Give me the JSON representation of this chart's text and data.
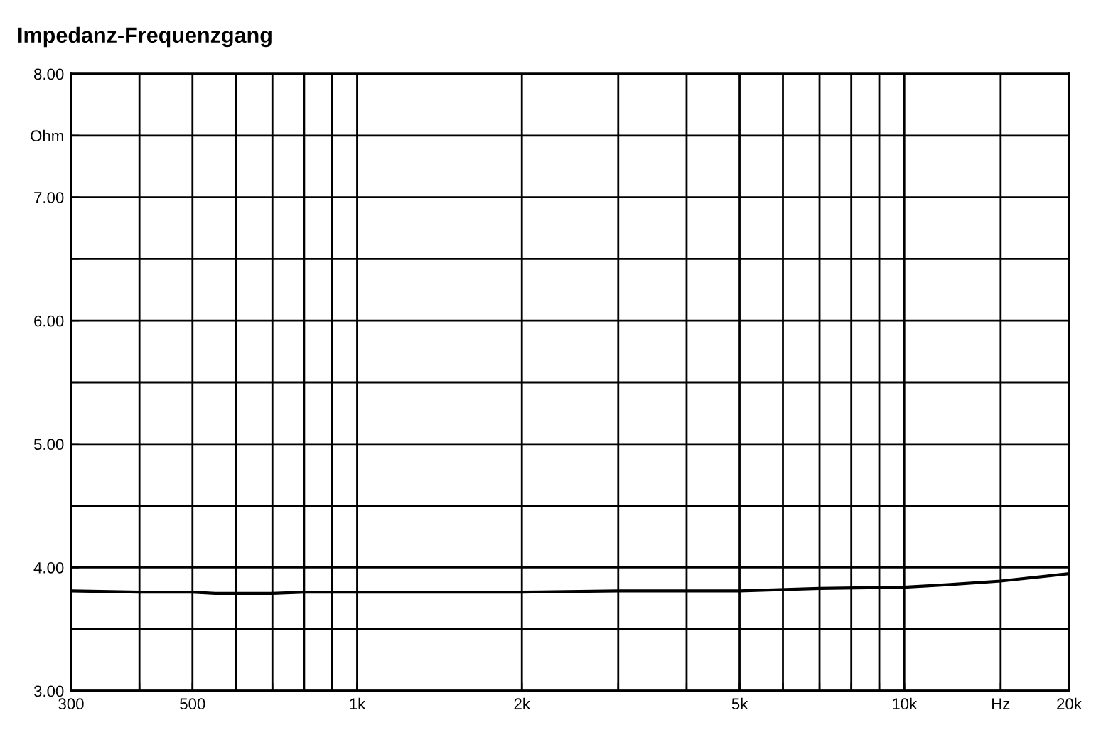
{
  "chart_data": {
    "type": "line",
    "title": "Impedanz-Frequenzgang",
    "x": [
      300,
      400,
      500,
      550,
      600,
      700,
      800,
      1000,
      2000,
      3000,
      5000,
      7000,
      10000,
      12000,
      15000,
      20000
    ],
    "values": [
      3.81,
      3.8,
      3.8,
      3.79,
      3.79,
      3.79,
      3.8,
      3.8,
      3.8,
      3.81,
      3.81,
      3.83,
      3.84,
      3.86,
      3.89,
      3.95
    ],
    "color": "#000000",
    "log": "x",
    "xlim": [
      300,
      20000
    ],
    "ylim": [
      3,
      8
    ],
    "xticks": [
      300,
      {
        "value": 400,
        "label": null
      },
      500,
      {
        "value": 600,
        "label": null
      },
      {
        "value": 700,
        "label": null
      },
      {
        "value": 800,
        "label": null
      },
      {
        "value": 900,
        "label": null
      },
      {
        "value": 1000,
        "label": "1k"
      },
      {
        "value": 2000,
        "label": "2k"
      },
      {
        "value": 3000,
        "label": null
      },
      {
        "value": 4000,
        "label": null
      },
      {
        "value": 5000,
        "label": "5k"
      },
      {
        "value": 6000,
        "label": null
      },
      {
        "value": 7000,
        "label": null
      },
      {
        "value": 8000,
        "label": null
      },
      {
        "value": 9000,
        "label": null
      },
      {
        "value": 10000,
        "label": "10k"
      },
      {
        "value": 15000,
        "label": "Hz"
      },
      {
        "value": 20000,
        "label": "20k"
      }
    ],
    "yticks": [
      {
        "value": 3,
        "label": "3.00"
      },
      {
        "value": 3.5,
        "label": null
      },
      {
        "value": 4,
        "label": "4.00"
      },
      {
        "value": 4.5,
        "label": null
      },
      {
        "value": 5,
        "label": "5.00"
      },
      {
        "value": 5.5,
        "label": null
      },
      {
        "value": 6,
        "label": "6.00"
      },
      {
        "value": 6.5,
        "label": null
      },
      {
        "value": 7,
        "label": "7.00"
      },
      {
        "value": 7.5,
        "label": "Ohm"
      },
      {
        "value": 8,
        "label": "8.00"
      }
    ],
    "grid": true
  }
}
